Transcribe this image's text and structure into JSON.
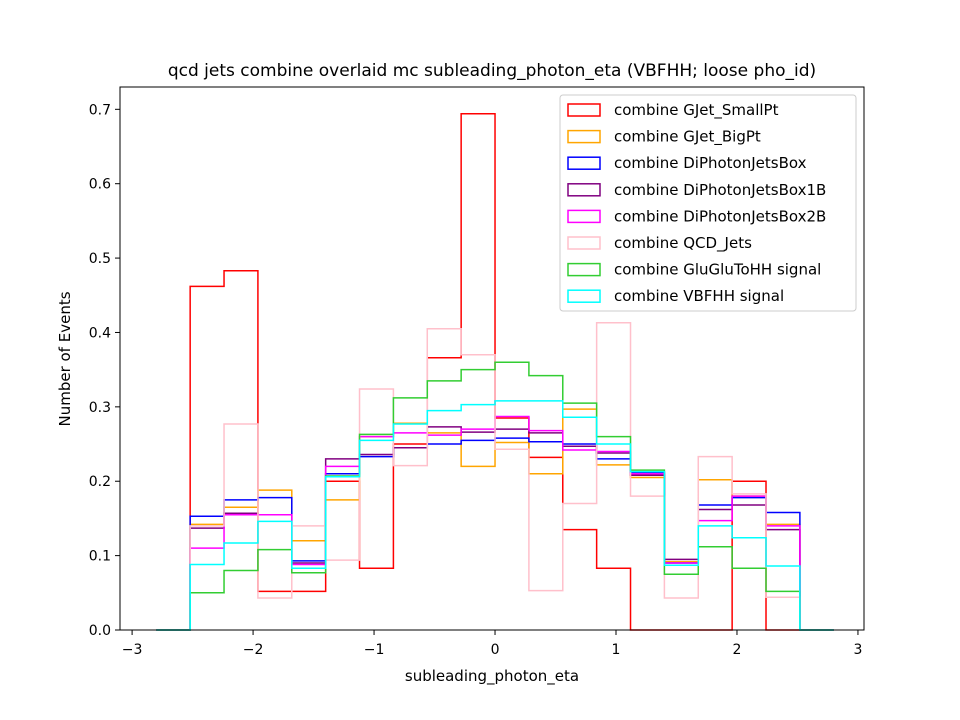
{
  "chart_data": {
    "type": "step",
    "title": "qcd jets combine overlaid mc subleading_photon_eta (VBFHH; loose pho_id)",
    "xlabel": "subleading_photon_eta",
    "ylabel": "Number of Events",
    "xlim": [
      -3.1,
      3.05
    ],
    "ylim": [
      0,
      0.73
    ],
    "xticks": [
      -3,
      -2,
      -1,
      0,
      1,
      2,
      3
    ],
    "xtick_labels": [
      "−3",
      "−2",
      "−1",
      "0",
      "1",
      "2",
      "3"
    ],
    "yticks": [
      0.0,
      0.1,
      0.2,
      0.3,
      0.4,
      0.5,
      0.6,
      0.7
    ],
    "ytick_labels": [
      "0.0",
      "0.1",
      "0.2",
      "0.3",
      "0.4",
      "0.5",
      "0.6",
      "0.7"
    ],
    "legend_position": "top-right",
    "bin_edges": [
      -2.8,
      -2.52,
      -2.24,
      -1.96,
      -1.68,
      -1.4,
      -1.12,
      -0.84,
      -0.56,
      -0.28,
      0.0,
      0.28,
      0.56,
      0.84,
      1.12,
      1.4,
      1.68,
      1.96,
      2.24,
      2.52,
      2.8
    ],
    "series": [
      {
        "name": "combine GJet_SmallPt",
        "color": "#ff0000",
        "values": [
          0,
          0.462,
          0.483,
          0.052,
          0.052,
          0.2,
          0.083,
          0.25,
          0.366,
          0.694,
          0.285,
          0.232,
          0.135,
          0.083,
          0,
          0,
          0,
          0.2,
          0,
          0
        ]
      },
      {
        "name": "combine GJet_BigPt",
        "color": "#ffa500",
        "values": [
          0,
          0.142,
          0.165,
          0.188,
          0.12,
          0.175,
          0.26,
          0.278,
          0.265,
          0.22,
          0.252,
          0.21,
          0.297,
          0.222,
          0.205,
          0.092,
          0.202,
          0.18,
          0.142,
          0
        ]
      },
      {
        "name": "combine DiPhotonJetsBox",
        "color": "#0000ff",
        "values": [
          0,
          0.153,
          0.175,
          0.178,
          0.093,
          0.21,
          0.233,
          0.245,
          0.25,
          0.255,
          0.258,
          0.253,
          0.25,
          0.23,
          0.212,
          0.09,
          0.168,
          0.178,
          0.158,
          0
        ]
      },
      {
        "name": "combine DiPhotonJetsBox1B",
        "color": "#800080",
        "values": [
          0,
          0.137,
          0.157,
          0.155,
          0.09,
          0.23,
          0.236,
          0.245,
          0.273,
          0.266,
          0.27,
          0.265,
          0.247,
          0.238,
          0.208,
          0.095,
          0.162,
          0.168,
          0.135,
          0
        ]
      },
      {
        "name": "combine DiPhotonJetsBox2B",
        "color": "#ff00ff",
        "values": [
          0,
          0.11,
          0.155,
          0.155,
          0.088,
          0.22,
          0.26,
          0.265,
          0.262,
          0.27,
          0.287,
          0.268,
          0.242,
          0.24,
          0.21,
          0.09,
          0.147,
          0.18,
          0.14,
          0
        ]
      },
      {
        "name": "combine QCD_Jets",
        "color": "#ffc0cb",
        "values": [
          0,
          0.14,
          0.277,
          0.043,
          0.14,
          0.094,
          0.324,
          0.221,
          0.405,
          0.37,
          0.243,
          0.053,
          0.17,
          0.413,
          0.18,
          0.043,
          0.233,
          0.183,
          0.044,
          0
        ]
      },
      {
        "name": "combine GluGluToHH signal",
        "color": "#32cd32",
        "values": [
          0,
          0.05,
          0.08,
          0.108,
          0.077,
          0.207,
          0.263,
          0.312,
          0.335,
          0.35,
          0.36,
          0.342,
          0.305,
          0.26,
          0.215,
          0.075,
          0.112,
          0.083,
          0.052,
          0
        ]
      },
      {
        "name": "combine VBFHH signal",
        "color": "#00ffff",
        "values": [
          0,
          0.088,
          0.117,
          0.146,
          0.083,
          0.206,
          0.255,
          0.277,
          0.295,
          0.303,
          0.308,
          0.308,
          0.286,
          0.25,
          0.213,
          0.087,
          0.14,
          0.124,
          0.086,
          0
        ]
      }
    ]
  }
}
